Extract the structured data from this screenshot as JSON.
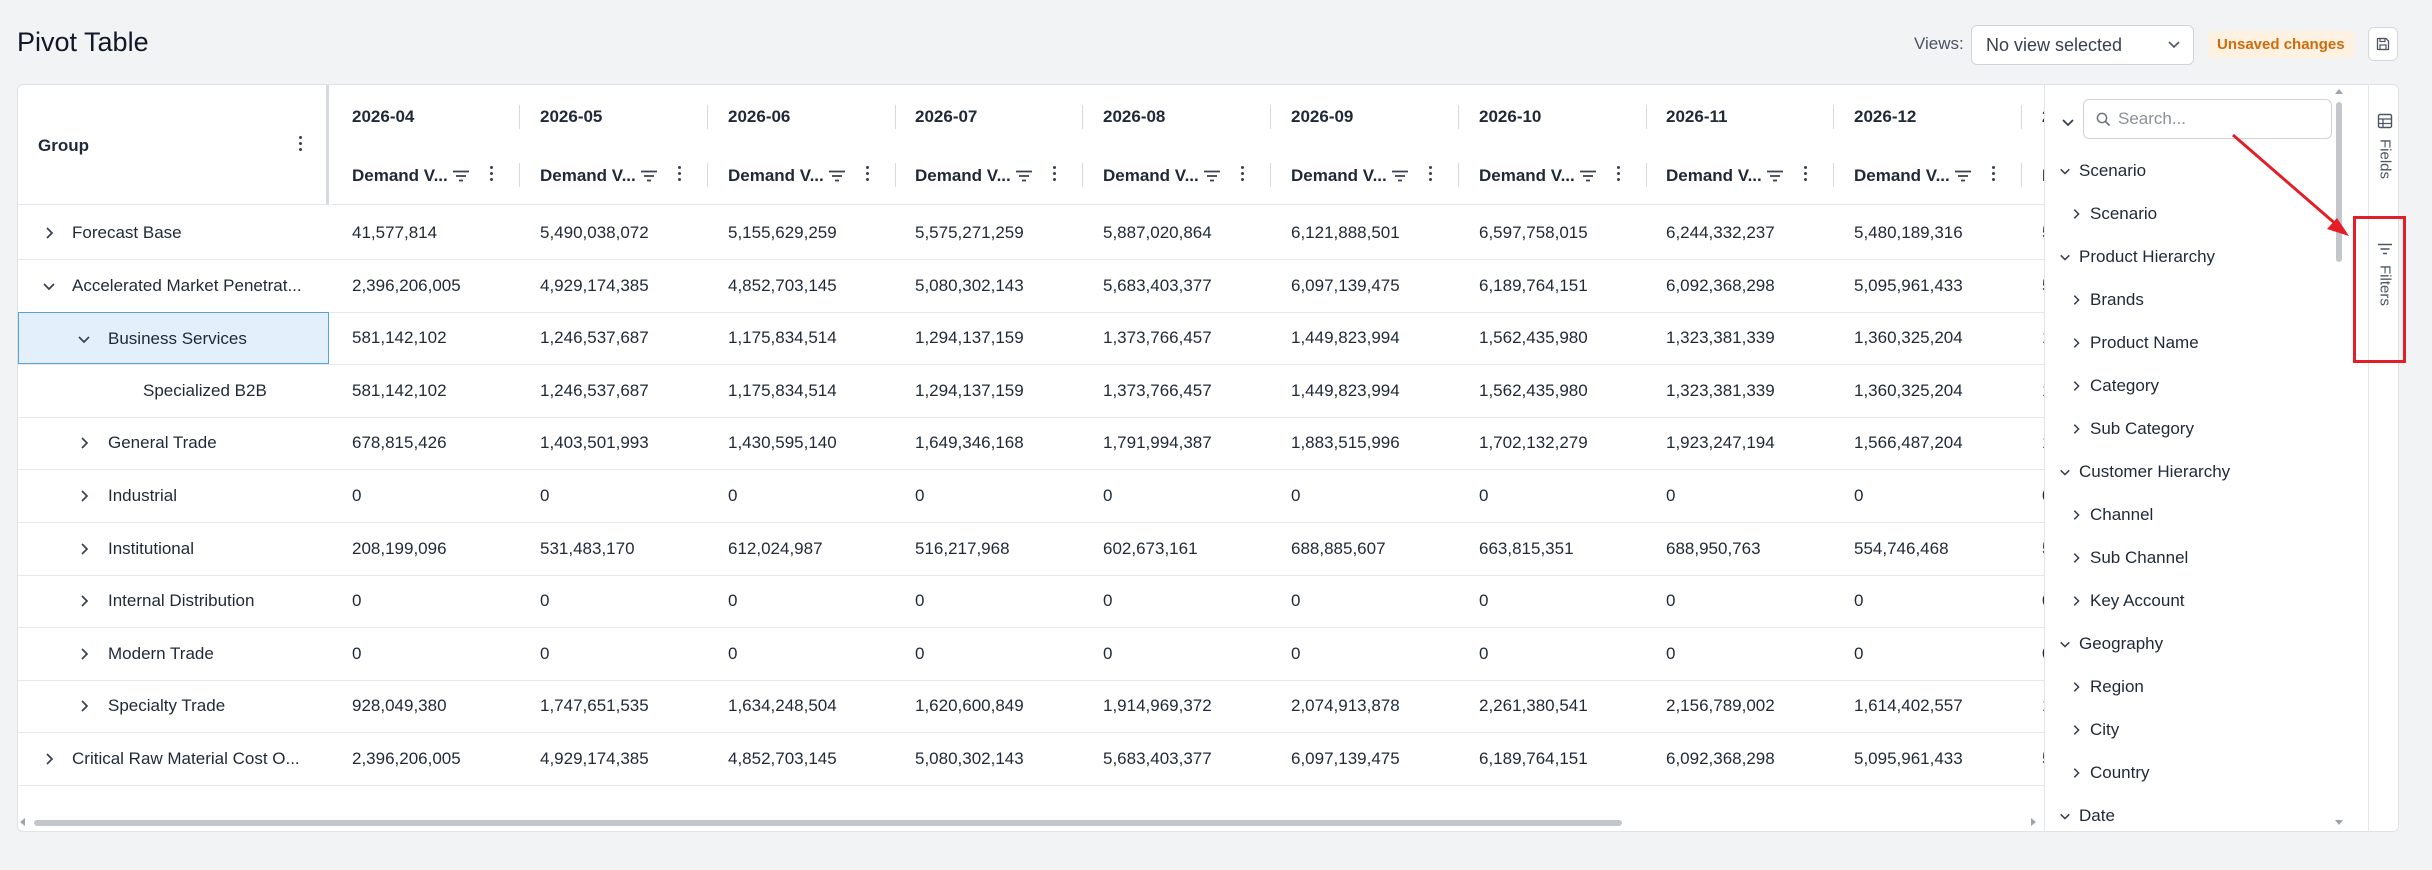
{
  "page": {
    "title": "Pivot Table"
  },
  "header": {
    "views_label": "Views:",
    "views_select_value": "No view selected",
    "unsaved_badge": "Unsaved changes",
    "save_icon": "save-icon"
  },
  "group_header": {
    "label": "Group"
  },
  "columns": [
    {
      "period": "2026-04",
      "measure": "Demand V..."
    },
    {
      "period": "2026-05",
      "measure": "Demand V..."
    },
    {
      "period": "2026-06",
      "measure": "Demand V..."
    },
    {
      "period": "2026-07",
      "measure": "Demand V..."
    },
    {
      "period": "2026-08",
      "measure": "Demand V..."
    },
    {
      "period": "2026-09",
      "measure": "Demand V..."
    },
    {
      "period": "2026-10",
      "measure": "Demand V..."
    },
    {
      "period": "2026-11",
      "measure": "Demand V..."
    },
    {
      "period": "2026-12",
      "measure": "Demand V..."
    },
    {
      "period": "2",
      "measure": "D"
    }
  ],
  "rows": [
    {
      "label": "Forecast Base",
      "level": 0,
      "toggle": "collapsed",
      "values": [
        "41,577,814",
        "5,490,038,072",
        "5,155,629,259",
        "5,575,271,259",
        "5,887,020,864",
        "6,121,888,501",
        "6,597,758,015",
        "6,244,332,237",
        "5,480,189,316",
        "5"
      ]
    },
    {
      "label": "Accelerated Market Penetrat...",
      "level": 0,
      "toggle": "expanded",
      "values": [
        "2,396,206,005",
        "4,929,174,385",
        "4,852,703,145",
        "5,080,302,143",
        "5,683,403,377",
        "6,097,139,475",
        "6,189,764,151",
        "6,092,368,298",
        "5,095,961,433",
        "5"
      ]
    },
    {
      "label": "Business Services",
      "level": 1,
      "toggle": "expanded",
      "selected": true,
      "values": [
        "581,142,102",
        "1,246,537,687",
        "1,175,834,514",
        "1,294,137,159",
        "1,373,766,457",
        "1,449,823,994",
        "1,562,435,980",
        "1,323,381,339",
        "1,360,325,204",
        "1"
      ]
    },
    {
      "label": "Specialized B2B",
      "level": 2,
      "toggle": "none",
      "values": [
        "581,142,102",
        "1,246,537,687",
        "1,175,834,514",
        "1,294,137,159",
        "1,373,766,457",
        "1,449,823,994",
        "1,562,435,980",
        "1,323,381,339",
        "1,360,325,204",
        "1"
      ]
    },
    {
      "label": "General Trade",
      "level": 1,
      "toggle": "collapsed",
      "values": [
        "678,815,426",
        "1,403,501,993",
        "1,430,595,140",
        "1,649,346,168",
        "1,791,994,387",
        "1,883,515,996",
        "1,702,132,279",
        "1,923,247,194",
        "1,566,487,204",
        "1"
      ]
    },
    {
      "label": "Industrial",
      "level": 1,
      "toggle": "collapsed",
      "values": [
        "0",
        "0",
        "0",
        "0",
        "0",
        "0",
        "0",
        "0",
        "0",
        "0"
      ]
    },
    {
      "label": "Institutional",
      "level": 1,
      "toggle": "collapsed",
      "values": [
        "208,199,096",
        "531,483,170",
        "612,024,987",
        "516,217,968",
        "602,673,161",
        "688,885,607",
        "663,815,351",
        "688,950,763",
        "554,746,468",
        "5"
      ]
    },
    {
      "label": "Internal Distribution",
      "level": 1,
      "toggle": "collapsed",
      "values": [
        "0",
        "0",
        "0",
        "0",
        "0",
        "0",
        "0",
        "0",
        "0",
        "0"
      ]
    },
    {
      "label": "Modern Trade",
      "level": 1,
      "toggle": "collapsed",
      "values": [
        "0",
        "0",
        "0",
        "0",
        "0",
        "0",
        "0",
        "0",
        "0",
        "0"
      ]
    },
    {
      "label": "Specialty Trade",
      "level": 1,
      "toggle": "collapsed",
      "values": [
        "928,049,380",
        "1,747,651,535",
        "1,634,248,504",
        "1,620,600,849",
        "1,914,969,372",
        "2,074,913,878",
        "2,261,380,541",
        "2,156,789,002",
        "1,614,402,557",
        "1"
      ]
    },
    {
      "label": "Critical Raw Material Cost O...",
      "level": 0,
      "toggle": "collapsed",
      "values": [
        "2,396,206,005",
        "4,929,174,385",
        "4,852,703,145",
        "5,080,302,143",
        "5,683,403,377",
        "6,097,139,475",
        "6,189,764,151",
        "6,092,368,298",
        "5,095,961,433",
        "5"
      ]
    }
  ],
  "field_panel": {
    "search_placeholder": "Search...",
    "tree": [
      {
        "label": "Scenario",
        "level": 0,
        "state": "expanded"
      },
      {
        "label": "Scenario",
        "level": 1,
        "state": "collapsed"
      },
      {
        "label": "Product Hierarchy",
        "level": 0,
        "state": "expanded"
      },
      {
        "label": "Brands",
        "level": 1,
        "state": "collapsed"
      },
      {
        "label": "Product Name",
        "level": 1,
        "state": "collapsed"
      },
      {
        "label": "Category",
        "level": 1,
        "state": "collapsed"
      },
      {
        "label": "Sub Category",
        "level": 1,
        "state": "collapsed"
      },
      {
        "label": "Customer Hierarchy",
        "level": 0,
        "state": "expanded"
      },
      {
        "label": "Channel",
        "level": 1,
        "state": "collapsed"
      },
      {
        "label": "Sub Channel",
        "level": 1,
        "state": "collapsed"
      },
      {
        "label": "Key Account",
        "level": 1,
        "state": "collapsed"
      },
      {
        "label": "Geography",
        "level": 0,
        "state": "expanded"
      },
      {
        "label": "Region",
        "level": 1,
        "state": "collapsed"
      },
      {
        "label": "City",
        "level": 1,
        "state": "collapsed"
      },
      {
        "label": "Country",
        "level": 1,
        "state": "collapsed"
      },
      {
        "label": "Date",
        "level": 0,
        "state": "expanded"
      }
    ]
  },
  "side_rail": {
    "fields_label": "Fields",
    "filters_label": "Filters"
  },
  "colors": {
    "accent_badge_bg": "#fdf1e2",
    "accent_badge_text": "#d06b0c",
    "selection_bg": "#e3f0fb",
    "selection_border": "#5aa2dc",
    "annotation_red": "#e21f26"
  }
}
